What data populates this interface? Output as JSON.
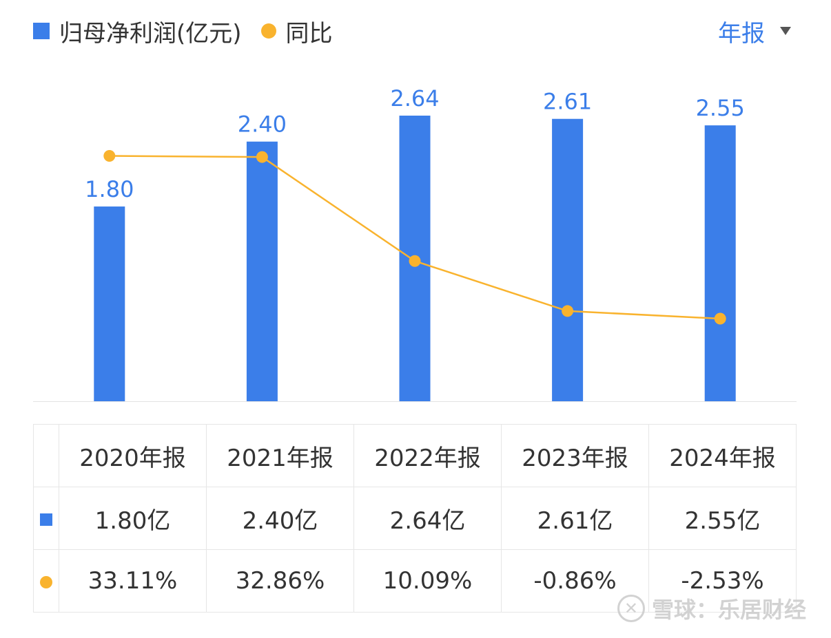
{
  "legend": {
    "bar_label": "归母净利润(亿元)",
    "line_label": "同比"
  },
  "period_selector": {
    "label": "年报"
  },
  "colors": {
    "bar": "#3b7ee9",
    "line": "#f9b32e",
    "positive": "#e0464a",
    "negative": "#1f9a6a"
  },
  "chart_data": {
    "type": "bar",
    "categories": [
      "2020年报",
      "2021年报",
      "2022年报",
      "2023年报",
      "2024年报"
    ],
    "series": [
      {
        "name": "归母净利润(亿元)",
        "type": "bar",
        "values": [
          1.8,
          2.4,
          2.64,
          2.61,
          2.55
        ],
        "labels": [
          "1.80",
          "2.40",
          "2.64",
          "2.61",
          "2.55"
        ]
      },
      {
        "name": "同比",
        "type": "line",
        "values": [
          33.11,
          32.86,
          10.09,
          -0.86,
          -2.53
        ]
      }
    ],
    "grid": false,
    "legend_position": "top-left"
  },
  "table": {
    "headers": [
      "2020年报",
      "2021年报",
      "2022年报",
      "2023年报",
      "2024年报"
    ],
    "profit_row": [
      "1.80亿",
      "2.40亿",
      "2.64亿",
      "2.61亿",
      "2.55亿"
    ],
    "yoy_row": [
      "33.11%",
      "32.86%",
      "10.09%",
      "-0.86%",
      "-2.53%"
    ]
  },
  "watermark": {
    "text": "雪球：乐居财经"
  }
}
